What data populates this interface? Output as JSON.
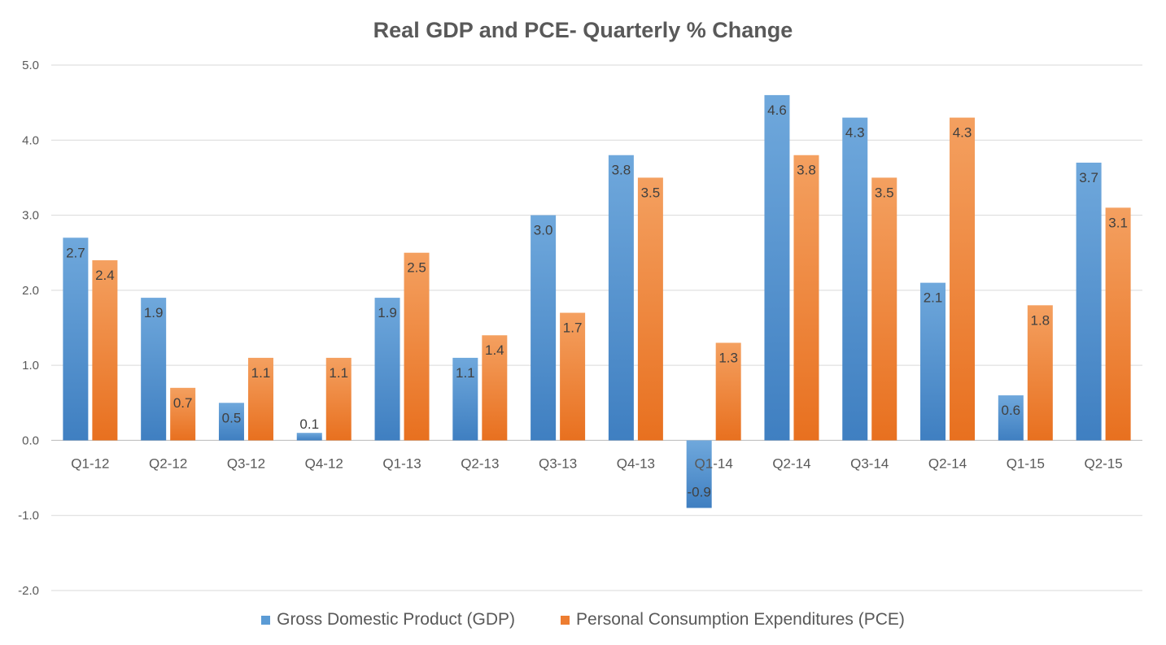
{
  "chart_data": {
    "type": "bar",
    "title": "Real GDP and PCE- Quarterly % Change",
    "xlabel": "",
    "ylabel": "",
    "categories": [
      "Q1-12",
      "Q2-12",
      "Q3-12",
      "Q4-12",
      "Q1-13",
      "Q2-13",
      "Q3-13",
      "Q4-13",
      "Q1-14",
      "Q2-14",
      "Q3-14",
      "Q2-14",
      "Q1-15",
      "Q2-15"
    ],
    "series": [
      {
        "name": "Gross Domestic Product (GDP)",
        "color": "#5b9bd5",
        "values": [
          2.7,
          1.9,
          0.5,
          0.1,
          1.9,
          1.1,
          3.0,
          3.8,
          -0.9,
          4.6,
          4.3,
          2.1,
          0.6,
          3.7
        ]
      },
      {
        "name": "Personal Consumption Expenditures (PCE)",
        "color": "#ed7d31",
        "values": [
          2.4,
          0.7,
          1.1,
          1.1,
          2.5,
          1.4,
          1.7,
          3.5,
          1.3,
          3.8,
          3.5,
          4.3,
          1.8,
          3.1
        ]
      }
    ],
    "ylim": [
      -2.0,
      5.0
    ],
    "yticks": [
      "5.0",
      "4.0",
      "3.0",
      "2.0",
      "1.0",
      "0.0",
      "-1.0",
      "-2.0"
    ],
    "grid": true,
    "legend_position": "bottom",
    "data_labels": true
  }
}
